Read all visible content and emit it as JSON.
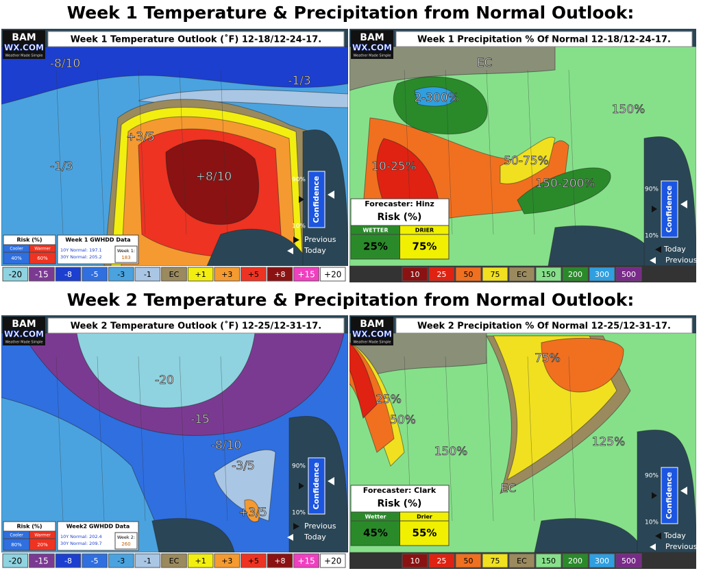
{
  "headers": [
    "Week 1 Temperature & Precipitation from Normal Outlook:",
    "Week 2 Temperature & Precipitation from Normal Outlook:"
  ],
  "panels": [
    {
      "title": "Week 1 Temperature Outlook (˚F) 12-18/12-24-17.",
      "logo": {
        "top": "BAM",
        "bottom": "WX.COM",
        "tagline": "Weather Made Simple"
      },
      "map_labels": [
        "-8/10",
        "-1/3",
        "+3/5",
        "+8/10",
        "-1/3"
      ],
      "confidence": {
        "high": "90%",
        "low": "10%",
        "label": "Confidence",
        "markers": [
          "Previous",
          "Today"
        ]
      },
      "risk": {
        "title": "Risk (%)",
        "columns": [
          {
            "name": "Cooler",
            "value": "40%"
          },
          {
            "name": "Warmer",
            "value": "60%"
          }
        ]
      },
      "gwhdd": {
        "title": "Week 1 GWHDD Data",
        "lines": [
          "10Y Normal: 197.1",
          "30Y Normal: 205.2"
        ],
        "week_label": "Week 1:",
        "week_value": "183"
      },
      "legend": [
        "-20",
        "-15",
        "-8",
        "-5",
        "-3",
        "-1",
        "EC",
        "+1",
        "+3",
        "+5",
        "+8",
        "+15",
        "+20"
      ]
    },
    {
      "title": "Week 1 Precipitation % Of Normal 12-18/12-24-17.",
      "logo": {
        "top": "BAM",
        "bottom": "WX.COM",
        "tagline": "Weather Made Simple"
      },
      "map_labels": [
        "EC",
        "2-300%",
        "150%",
        "10-25%",
        "50-75%",
        "150-200%"
      ],
      "confidence": {
        "high": "90%",
        "low": "10%",
        "label": "Confidence",
        "markers": [
          "Today",
          "Previous"
        ]
      },
      "forecaster": "Forecaster: Hinz",
      "risk": {
        "title": "Risk (%)",
        "columns": [
          {
            "name": "WETTER",
            "value": "25%"
          },
          {
            "name": "DRIER",
            "value": "75%"
          }
        ]
      },
      "legend": [
        "10",
        "25",
        "50",
        "75",
        "EC",
        "150",
        "200",
        "300",
        "500"
      ]
    },
    {
      "title": "Week 2 Temperature Outlook (˚F) 12-25/12-31-17.",
      "logo": {
        "top": "BAM",
        "bottom": "WX.COM",
        "tagline": "Weather Made Simple"
      },
      "map_labels": [
        "-20",
        "-15",
        "-8/10",
        "-3/5",
        "+3/5"
      ],
      "confidence": {
        "high": "90%",
        "low": "10%",
        "label": "Confidence",
        "markers": [
          "Previous",
          "Today"
        ]
      },
      "risk": {
        "title": "Risk (%)",
        "columns": [
          {
            "name": "Cooler",
            "value": "80%"
          },
          {
            "name": "Warmer",
            "value": "20%"
          }
        ]
      },
      "gwhdd": {
        "title": "Week2 GWHDD Data",
        "lines": [
          "10Y Normal: 202.4",
          "30Y Normal: 209.7"
        ],
        "week_label": "Week 2:",
        "week_value": "260"
      },
      "legend": [
        "-20",
        "-15",
        "-8",
        "-5",
        "-3",
        "-1",
        "EC",
        "+1",
        "+3",
        "+5",
        "+8",
        "+15",
        "+20"
      ]
    },
    {
      "title": "Week 2 Precipitation % Of Normal 12-25/12-31-17.",
      "logo": {
        "top": "BAM",
        "bottom": "WX.COM",
        "tagline": "Weather Made Simple"
      },
      "map_labels": [
        "75%",
        "25%",
        "50%",
        "150%",
        "125%",
        "EC"
      ],
      "confidence": {
        "high": "90%",
        "low": "10%",
        "label": "Confidence",
        "markers": [
          "Today",
          "Previous"
        ]
      },
      "forecaster": "Forecaster: Clark",
      "risk": {
        "title": "Risk (%)",
        "columns": [
          {
            "name": "Wetter",
            "value": "45%"
          },
          {
            "name": "Drier",
            "value": "55%"
          }
        ]
      },
      "legend": [
        "10",
        "25",
        "50",
        "75",
        "EC",
        "150",
        "200",
        "300",
        "500"
      ]
    }
  ]
}
